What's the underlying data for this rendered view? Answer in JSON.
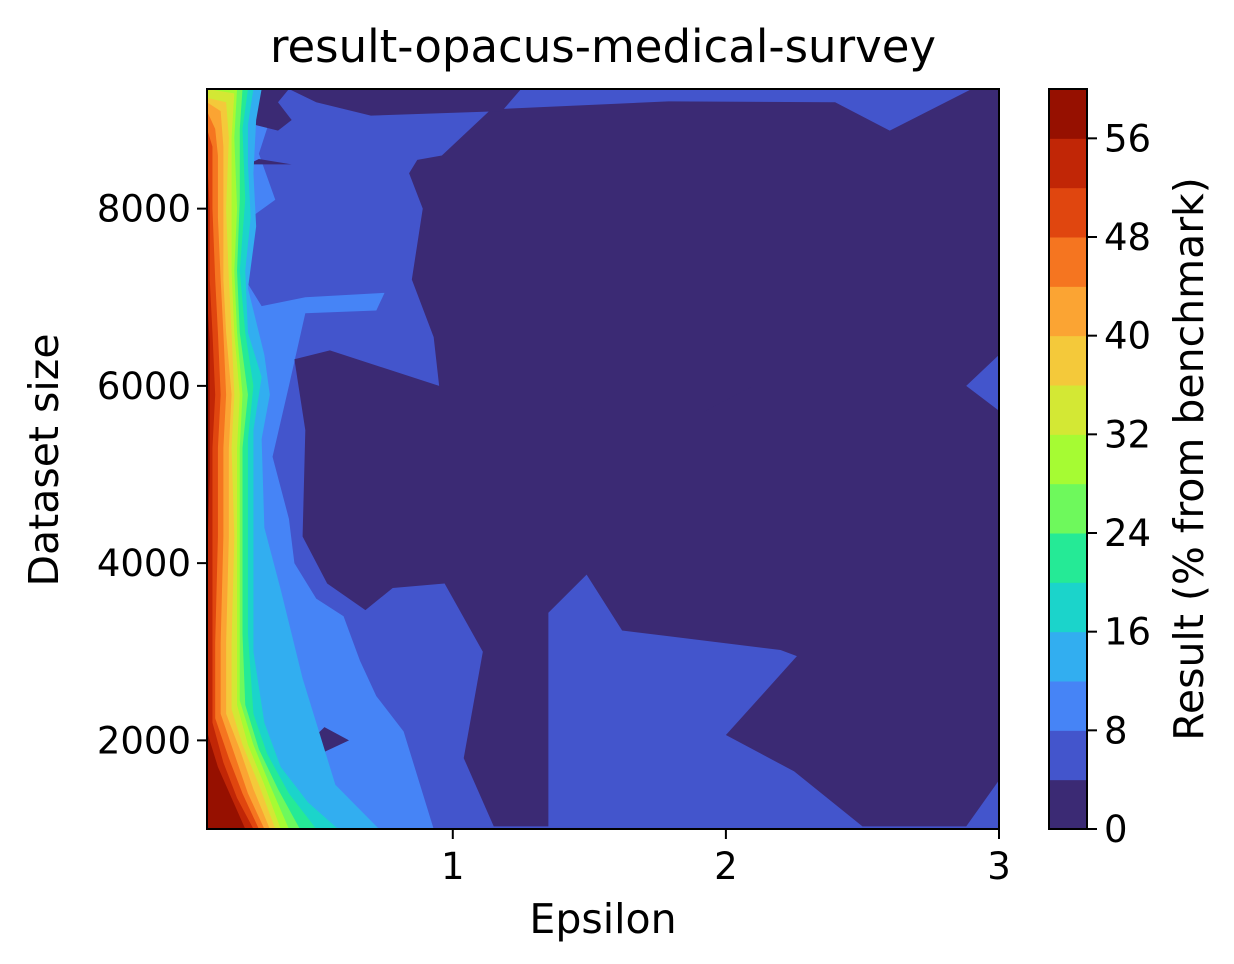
{
  "chart_data": {
    "type": "heatmap",
    "subtype": "filled-contour",
    "title": "result-opacus-medical-survey",
    "xlabel": "Epsilon",
    "ylabel": "Dataset size",
    "colorbar_label": "Result (% from benchmark)",
    "xlim": [
      0.1,
      3.0
    ],
    "ylim": [
      1000,
      9350
    ],
    "x_ticks": [
      1,
      2,
      3
    ],
    "y_ticks": [
      2000,
      4000,
      6000,
      8000
    ],
    "colorbar_range": [
      0,
      60
    ],
    "colorbar_ticks": [
      0,
      8,
      16,
      24,
      32,
      40,
      48,
      56
    ],
    "levels": [
      0,
      4,
      8,
      12,
      16,
      20,
      24,
      28,
      32,
      36,
      40,
      44,
      48,
      52,
      56,
      60
    ],
    "colormap": "turbo",
    "level_colors": [
      "#3b2a74",
      "#4355cc",
      "#4684f6",
      "#32aef0",
      "#1bd4cb",
      "#25ea96",
      "#6ef95c",
      "#a6fb33",
      "#d3e834",
      "#f4c93a",
      "#fba433",
      "#f57520",
      "#e0460f",
      "#c12606",
      "#961000"
    ],
    "grid": false,
    "regions": [
      {
        "label": "0-4 (large region, eps >= ~0.4)",
        "points": [
          [
            0.96,
            8600
          ],
          [
            1.14,
            9120
          ],
          [
            1.79,
            9210
          ],
          [
            2.4,
            9200
          ],
          [
            2.6,
            8880
          ],
          [
            2.9,
            9350
          ],
          [
            3.0,
            9350
          ],
          [
            3.0,
            6350
          ],
          [
            2.88,
            6000
          ],
          [
            3.0,
            5720
          ],
          [
            3.0,
            1550
          ],
          [
            2.88,
            1030
          ],
          [
            2.5,
            1030
          ],
          [
            2.25,
            1650
          ],
          [
            2.0,
            2060
          ],
          [
            2.26,
            2950
          ],
          [
            2.2,
            3020
          ],
          [
            1.62,
            3240
          ],
          [
            1.49,
            3870
          ],
          [
            1.35,
            3440
          ],
          [
            1.35,
            1030
          ],
          [
            1.15,
            1030
          ],
          [
            1.04,
            1800
          ],
          [
            1.11,
            3000
          ],
          [
            0.97,
            3770
          ],
          [
            0.78,
            3720
          ],
          [
            0.68,
            3470
          ],
          [
            0.54,
            3770
          ],
          [
            0.45,
            4300
          ],
          [
            0.46,
            5500
          ],
          [
            0.42,
            6300
          ],
          [
            0.55,
            6400
          ],
          [
            0.95,
            6000
          ],
          [
            0.93,
            6550
          ],
          [
            0.85,
            7200
          ],
          [
            0.87,
            7600
          ],
          [
            0.89,
            8000
          ],
          [
            0.84,
            8400
          ],
          [
            0.87,
            8550
          ]
        ]
      },
      {
        "label": "0-4 diamond A",
        "points": [
          [
            1.36,
            6000
          ],
          [
            1.5,
            5700
          ],
          [
            1.62,
            6000
          ],
          [
            1.5,
            6550
          ]
        ]
      },
      {
        "label": "0-4 diamond B",
        "points": [
          [
            1.82,
            6000
          ],
          [
            1.92,
            5710
          ],
          [
            2.1,
            6000
          ],
          [
            1.98,
            6540
          ]
        ]
      },
      {
        "label": "0-4 strip near top (near left edge)",
        "points": [
          [
            0.29,
            9350
          ],
          [
            0.4,
            9350
          ],
          [
            0.36,
            9200
          ],
          [
            0.41,
            9000
          ],
          [
            0.36,
            8880
          ],
          [
            0.27,
            8950
          ]
        ]
      },
      {
        "label": "0-4 top band",
        "points": [
          [
            0.4,
            9350
          ],
          [
            1.25,
            9350
          ],
          [
            1.18,
            9100
          ],
          [
            0.7,
            9050
          ],
          [
            0.5,
            9200
          ]
        ]
      },
      {
        "label": "0-4 small wedge near eps 0.4",
        "points": [
          [
            0.25,
            8500
          ],
          [
            0.41,
            8500
          ],
          [
            0.29,
            8560
          ]
        ]
      },
      {
        "label": "0-4 small island near bottom (~0.5, 2000)",
        "points": [
          [
            0.48,
            2000
          ],
          [
            0.53,
            2150
          ],
          [
            0.62,
            2000
          ],
          [
            0.53,
            1870
          ]
        ]
      }
    ]
  }
}
